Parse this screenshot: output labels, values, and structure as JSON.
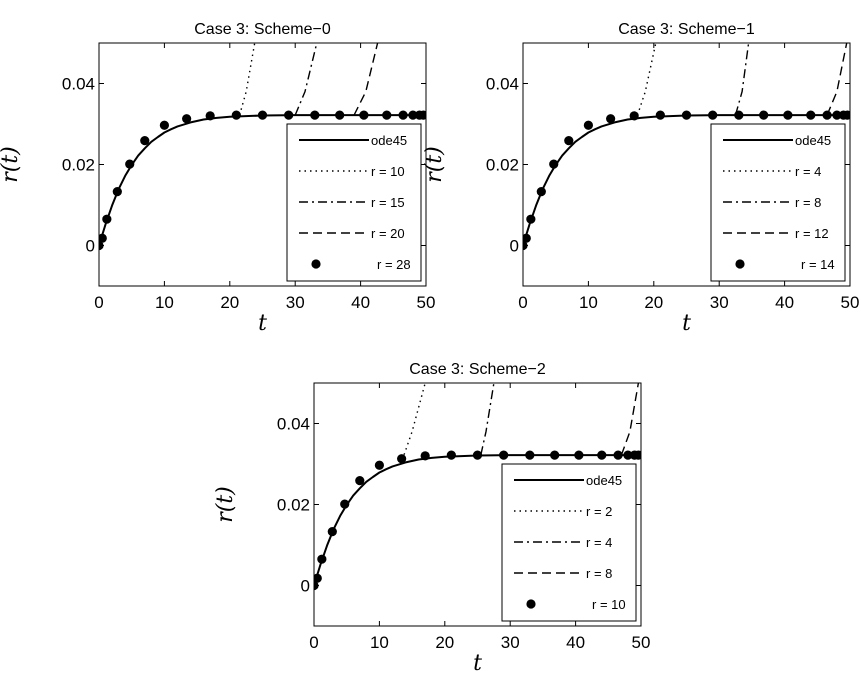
{
  "chart_data": [
    {
      "type": "line",
      "title": "Case 3: Scheme−0",
      "xlabel": "t",
      "ylabel": "r(t)",
      "xlim": [
        0,
        50
      ],
      "ylim": [
        -0.01,
        0.05
      ],
      "xticks": [
        "0",
        "10",
        "20",
        "30",
        "40",
        "50"
      ],
      "yticks": [
        "0",
        "0.02",
        "0.04"
      ],
      "legend_location": "lower-right",
      "series": [
        {
          "name": "ode45",
          "style": "solid",
          "x": [
            0,
            1,
            2,
            3,
            4,
            5,
            6,
            7,
            8,
            9,
            10,
            11,
            12,
            14,
            16,
            18,
            20,
            25,
            30,
            35,
            40,
            45,
            50
          ],
          "y": [
            0,
            0.0052,
            0.0099,
            0.0139,
            0.0172,
            0.0199,
            0.0222,
            0.024,
            0.0256,
            0.0268,
            0.0279,
            0.0287,
            0.0294,
            0.0304,
            0.0311,
            0.0315,
            0.0318,
            0.0321,
            0.0322,
            0.0322,
            0.0322,
            0.0322,
            0.0322
          ]
        },
        {
          "name": "r = 10",
          "style": "dotted",
          "x": [
            21.5,
            22.5,
            23.8
          ],
          "y": [
            0.0322,
            0.038,
            0.05
          ]
        },
        {
          "name": "r = 15",
          "style": "dashdot",
          "x": [
            30,
            31.5,
            33.3
          ],
          "y": [
            0.0322,
            0.038,
            0.05
          ]
        },
        {
          "name": "r = 20",
          "style": "dashed",
          "x": [
            39,
            40.8,
            42.6
          ],
          "y": [
            0.0322,
            0.038,
            0.05
          ]
        },
        {
          "name": "r = 28",
          "style": "markers",
          "x": [
            0,
            0.5,
            1.2,
            2.8,
            4.7,
            7,
            10,
            13.4,
            17,
            21,
            25,
            29,
            33,
            36.8,
            40.5,
            44,
            46.5,
            48,
            49,
            49.6
          ],
          "y": [
            0,
            0.0018,
            0.0065,
            0.0133,
            0.0201,
            0.0259,
            0.0297,
            0.0313,
            0.032,
            0.0322,
            0.0322,
            0.0322,
            0.0322,
            0.0322,
            0.0322,
            0.0322,
            0.0322,
            0.0322,
            0.0322,
            0.0322
          ]
        }
      ]
    },
    {
      "type": "line",
      "title": "Case 3: Scheme−1",
      "xlabel": "t",
      "ylabel": "r(t)",
      "xlim": [
        0,
        50
      ],
      "ylim": [
        -0.01,
        0.05
      ],
      "xticks": [
        "0",
        "10",
        "20",
        "30",
        "40",
        "50"
      ],
      "yticks": [
        "0",
        "0.02",
        "0.04"
      ],
      "legend_location": "lower-right",
      "series": [
        {
          "name": "ode45",
          "style": "solid",
          "x": [
            0,
            1,
            2,
            3,
            4,
            5,
            6,
            7,
            8,
            9,
            10,
            11,
            12,
            14,
            16,
            18,
            20,
            25,
            30,
            35,
            40,
            45,
            50
          ],
          "y": [
            0,
            0.0052,
            0.0099,
            0.0139,
            0.0172,
            0.0199,
            0.0222,
            0.024,
            0.0256,
            0.0268,
            0.0279,
            0.0287,
            0.0294,
            0.0304,
            0.0311,
            0.0315,
            0.0318,
            0.0321,
            0.0322,
            0.0322,
            0.0322,
            0.0322,
            0.0322
          ]
        },
        {
          "name": "r = 4",
          "style": "dotted",
          "x": [
            17.5,
            18.7,
            20.3
          ],
          "y": [
            0.0322,
            0.038,
            0.05
          ]
        },
        {
          "name": "r = 8",
          "style": "dashdot",
          "x": [
            32.5,
            33.5,
            34.5
          ],
          "y": [
            0.0322,
            0.038,
            0.05
          ]
        },
        {
          "name": "r = 12",
          "style": "dashed",
          "x": [
            46.5,
            48,
            49.5
          ],
          "y": [
            0.0322,
            0.038,
            0.05
          ]
        },
        {
          "name": "r = 14",
          "style": "markers",
          "x": [
            0,
            0.5,
            1.2,
            2.8,
            4.7,
            7,
            10,
            13.4,
            17,
            21,
            25,
            29,
            33,
            36.8,
            40.5,
            44,
            46.5,
            48,
            49,
            49.6
          ],
          "y": [
            0,
            0.0018,
            0.0065,
            0.0133,
            0.0201,
            0.0259,
            0.0297,
            0.0313,
            0.032,
            0.0322,
            0.0322,
            0.0322,
            0.0322,
            0.0322,
            0.0322,
            0.0322,
            0.0322,
            0.0322,
            0.0322,
            0.0322
          ]
        }
      ]
    },
    {
      "type": "line",
      "title": "Case 3: Scheme−2",
      "xlabel": "t",
      "ylabel": "r(t)",
      "xlim": [
        0,
        50
      ],
      "ylim": [
        -0.01,
        0.05
      ],
      "xticks": [
        "0",
        "10",
        "20",
        "30",
        "40",
        "50"
      ],
      "yticks": [
        "0",
        "0.02",
        "0.04"
      ],
      "legend_location": "lower-right",
      "series": [
        {
          "name": "ode45",
          "style": "solid",
          "x": [
            0,
            1,
            2,
            3,
            4,
            5,
            6,
            7,
            8,
            9,
            10,
            11,
            12,
            14,
            16,
            18,
            20,
            25,
            30,
            35,
            40,
            45,
            50
          ],
          "y": [
            0,
            0.0052,
            0.0099,
            0.0139,
            0.0172,
            0.0199,
            0.0222,
            0.024,
            0.0256,
            0.0268,
            0.0279,
            0.0287,
            0.0294,
            0.0304,
            0.0311,
            0.0315,
            0.0318,
            0.0321,
            0.0322,
            0.0322,
            0.0322,
            0.0322,
            0.0322
          ]
        },
        {
          "name": "r = 2",
          "style": "dotted",
          "x": [
            13.5,
            15,
            17
          ],
          "y": [
            0.031,
            0.038,
            0.05
          ]
        },
        {
          "name": "r = 4",
          "style": "dashdot",
          "x": [
            25.5,
            26.3,
            27.5
          ],
          "y": [
            0.0322,
            0.038,
            0.05
          ]
        },
        {
          "name": "r = 8",
          "style": "dashed",
          "x": [
            47,
            48.3,
            49.6
          ],
          "y": [
            0.0322,
            0.038,
            0.05
          ]
        },
        {
          "name": "r = 10",
          "style": "markers",
          "x": [
            0,
            0.5,
            1.2,
            2.8,
            4.7,
            7,
            10,
            13.4,
            17,
            21,
            25,
            29,
            33,
            36.8,
            40.5,
            44,
            46.5,
            48,
            49,
            49.6
          ],
          "y": [
            0,
            0.0018,
            0.0065,
            0.0133,
            0.0201,
            0.0259,
            0.0297,
            0.0313,
            0.032,
            0.0322,
            0.0322,
            0.0322,
            0.0322,
            0.0322,
            0.0322,
            0.0322,
            0.0322,
            0.0322,
            0.0322,
            0.0322
          ]
        }
      ]
    }
  ]
}
